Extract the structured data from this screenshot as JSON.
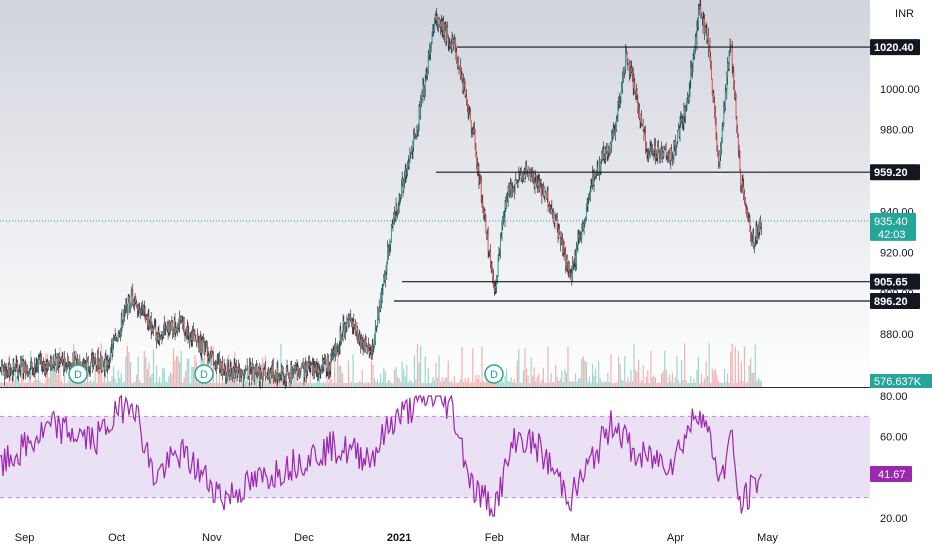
{
  "currency": "INR",
  "colors": {
    "background_top": "#d1d4dc",
    "background_bottom": "#ffffff",
    "candle_up": "#26a69a",
    "candle_down": "#ef5350",
    "candle_wick": "#131722",
    "volume_up": "#26a69a",
    "volume_down": "#ef5350",
    "level_line": "#131722",
    "price_tag": "#26a69a",
    "rsi_line": "#9c27b0",
    "rsi_band": "#e1d4f0",
    "rsi_tag": "#9c27b0",
    "axis_text": "#131722",
    "dividend_marker": "#26a69a"
  },
  "chart_data": [
    {
      "type": "candlestick",
      "title": "",
      "currency": "INR",
      "ylim": [
        860,
        1040
      ],
      "y_ticks": [
        "880.00",
        "900.00",
        "920.00",
        "940.00",
        "960.00",
        "980.00",
        "1000.00",
        "1020.00"
      ],
      "x_ticks": [
        "Sep",
        "Oct",
        "Nov",
        "Dec",
        "2021",
        "Feb",
        "Mar",
        "Apr",
        "May"
      ],
      "horizontal_levels": [
        1020.4,
        959.2,
        905.65,
        896.2
      ],
      "level_labels": [
        "1020.40",
        "959.20",
        "905.65",
        "896.20"
      ],
      "last_price": "935.40",
      "countdown": "42:03",
      "volume_label": "576.637K",
      "dividend_markers": [
        "D",
        "D",
        "D"
      ],
      "price_path": [
        {
          "date": "2020-08-24",
          "price": 862
        },
        {
          "date": "2020-09-10",
          "price": 866
        },
        {
          "date": "2020-09-28",
          "price": 866
        },
        {
          "date": "2020-10-06",
          "price": 900
        },
        {
          "date": "2020-10-14",
          "price": 880
        },
        {
          "date": "2020-10-22",
          "price": 885
        },
        {
          "date": "2020-11-05",
          "price": 862
        },
        {
          "date": "2020-11-25",
          "price": 860
        },
        {
          "date": "2020-12-10",
          "price": 866
        },
        {
          "date": "2020-12-15",
          "price": 888
        },
        {
          "date": "2020-12-23",
          "price": 870
        },
        {
          "date": "2020-12-30",
          "price": 935
        },
        {
          "date": "2021-01-06",
          "price": 975
        },
        {
          "date": "2021-01-13",
          "price": 1035
        },
        {
          "date": "2021-01-19",
          "price": 1020
        },
        {
          "date": "2021-01-25",
          "price": 980
        },
        {
          "date": "2021-02-01",
          "price": 900
        },
        {
          "date": "2021-02-05",
          "price": 948
        },
        {
          "date": "2021-02-12",
          "price": 960
        },
        {
          "date": "2021-02-19",
          "price": 945
        },
        {
          "date": "2021-02-26",
          "price": 908
        },
        {
          "date": "2021-03-05",
          "price": 955
        },
        {
          "date": "2021-03-12",
          "price": 978
        },
        {
          "date": "2021-03-16",
          "price": 1018
        },
        {
          "date": "2021-03-23",
          "price": 970
        },
        {
          "date": "2021-03-31",
          "price": 968
        },
        {
          "date": "2021-04-05",
          "price": 995
        },
        {
          "date": "2021-04-09",
          "price": 1040
        },
        {
          "date": "2021-04-12",
          "price": 1020
        },
        {
          "date": "2021-04-15",
          "price": 962
        },
        {
          "date": "2021-04-19",
          "price": 1025
        },
        {
          "date": "2021-04-22",
          "price": 958
        },
        {
          "date": "2021-04-26",
          "price": 925
        },
        {
          "date": "2021-04-29",
          "price": 935
        }
      ]
    },
    {
      "type": "line",
      "title": "",
      "ylim": [
        20,
        80
      ],
      "y_ticks": [
        "20.00",
        "60.00",
        "80.00"
      ],
      "band": [
        30,
        70
      ],
      "current_value": "41.67",
      "series": [
        {
          "values_path": [
            {
              "date": "2020-08-24",
              "value": 45
            },
            {
              "date": "2020-09-10",
              "value": 65
            },
            {
              "date": "2020-09-24",
              "value": 58
            },
            {
              "date": "2020-10-06",
              "value": 80
            },
            {
              "date": "2020-10-13",
              "value": 40
            },
            {
              "date": "2020-10-22",
              "value": 52
            },
            {
              "date": "2020-11-05",
              "value": 30
            },
            {
              "date": "2020-11-25",
              "value": 45
            },
            {
              "date": "2020-12-10",
              "value": 55
            },
            {
              "date": "2020-12-23",
              "value": 50
            },
            {
              "date": "2020-12-30",
              "value": 68
            },
            {
              "date": "2021-01-11",
              "value": 80
            },
            {
              "date": "2021-01-18",
              "value": 75
            },
            {
              "date": "2021-01-25",
              "value": 35
            },
            {
              "date": "2021-02-01",
              "value": 25
            },
            {
              "date": "2021-02-08",
              "value": 60
            },
            {
              "date": "2021-02-15",
              "value": 55
            },
            {
              "date": "2021-02-26",
              "value": 30
            },
            {
              "date": "2021-03-12",
              "value": 68
            },
            {
              "date": "2021-03-19",
              "value": 50
            },
            {
              "date": "2021-03-31",
              "value": 48
            },
            {
              "date": "2021-04-09",
              "value": 75
            },
            {
              "date": "2021-04-16",
              "value": 38
            },
            {
              "date": "2021-04-19",
              "value": 62
            },
            {
              "date": "2021-04-22",
              "value": 25
            },
            {
              "date": "2021-04-29",
              "value": 41.67
            }
          ]
        }
      ]
    }
  ]
}
